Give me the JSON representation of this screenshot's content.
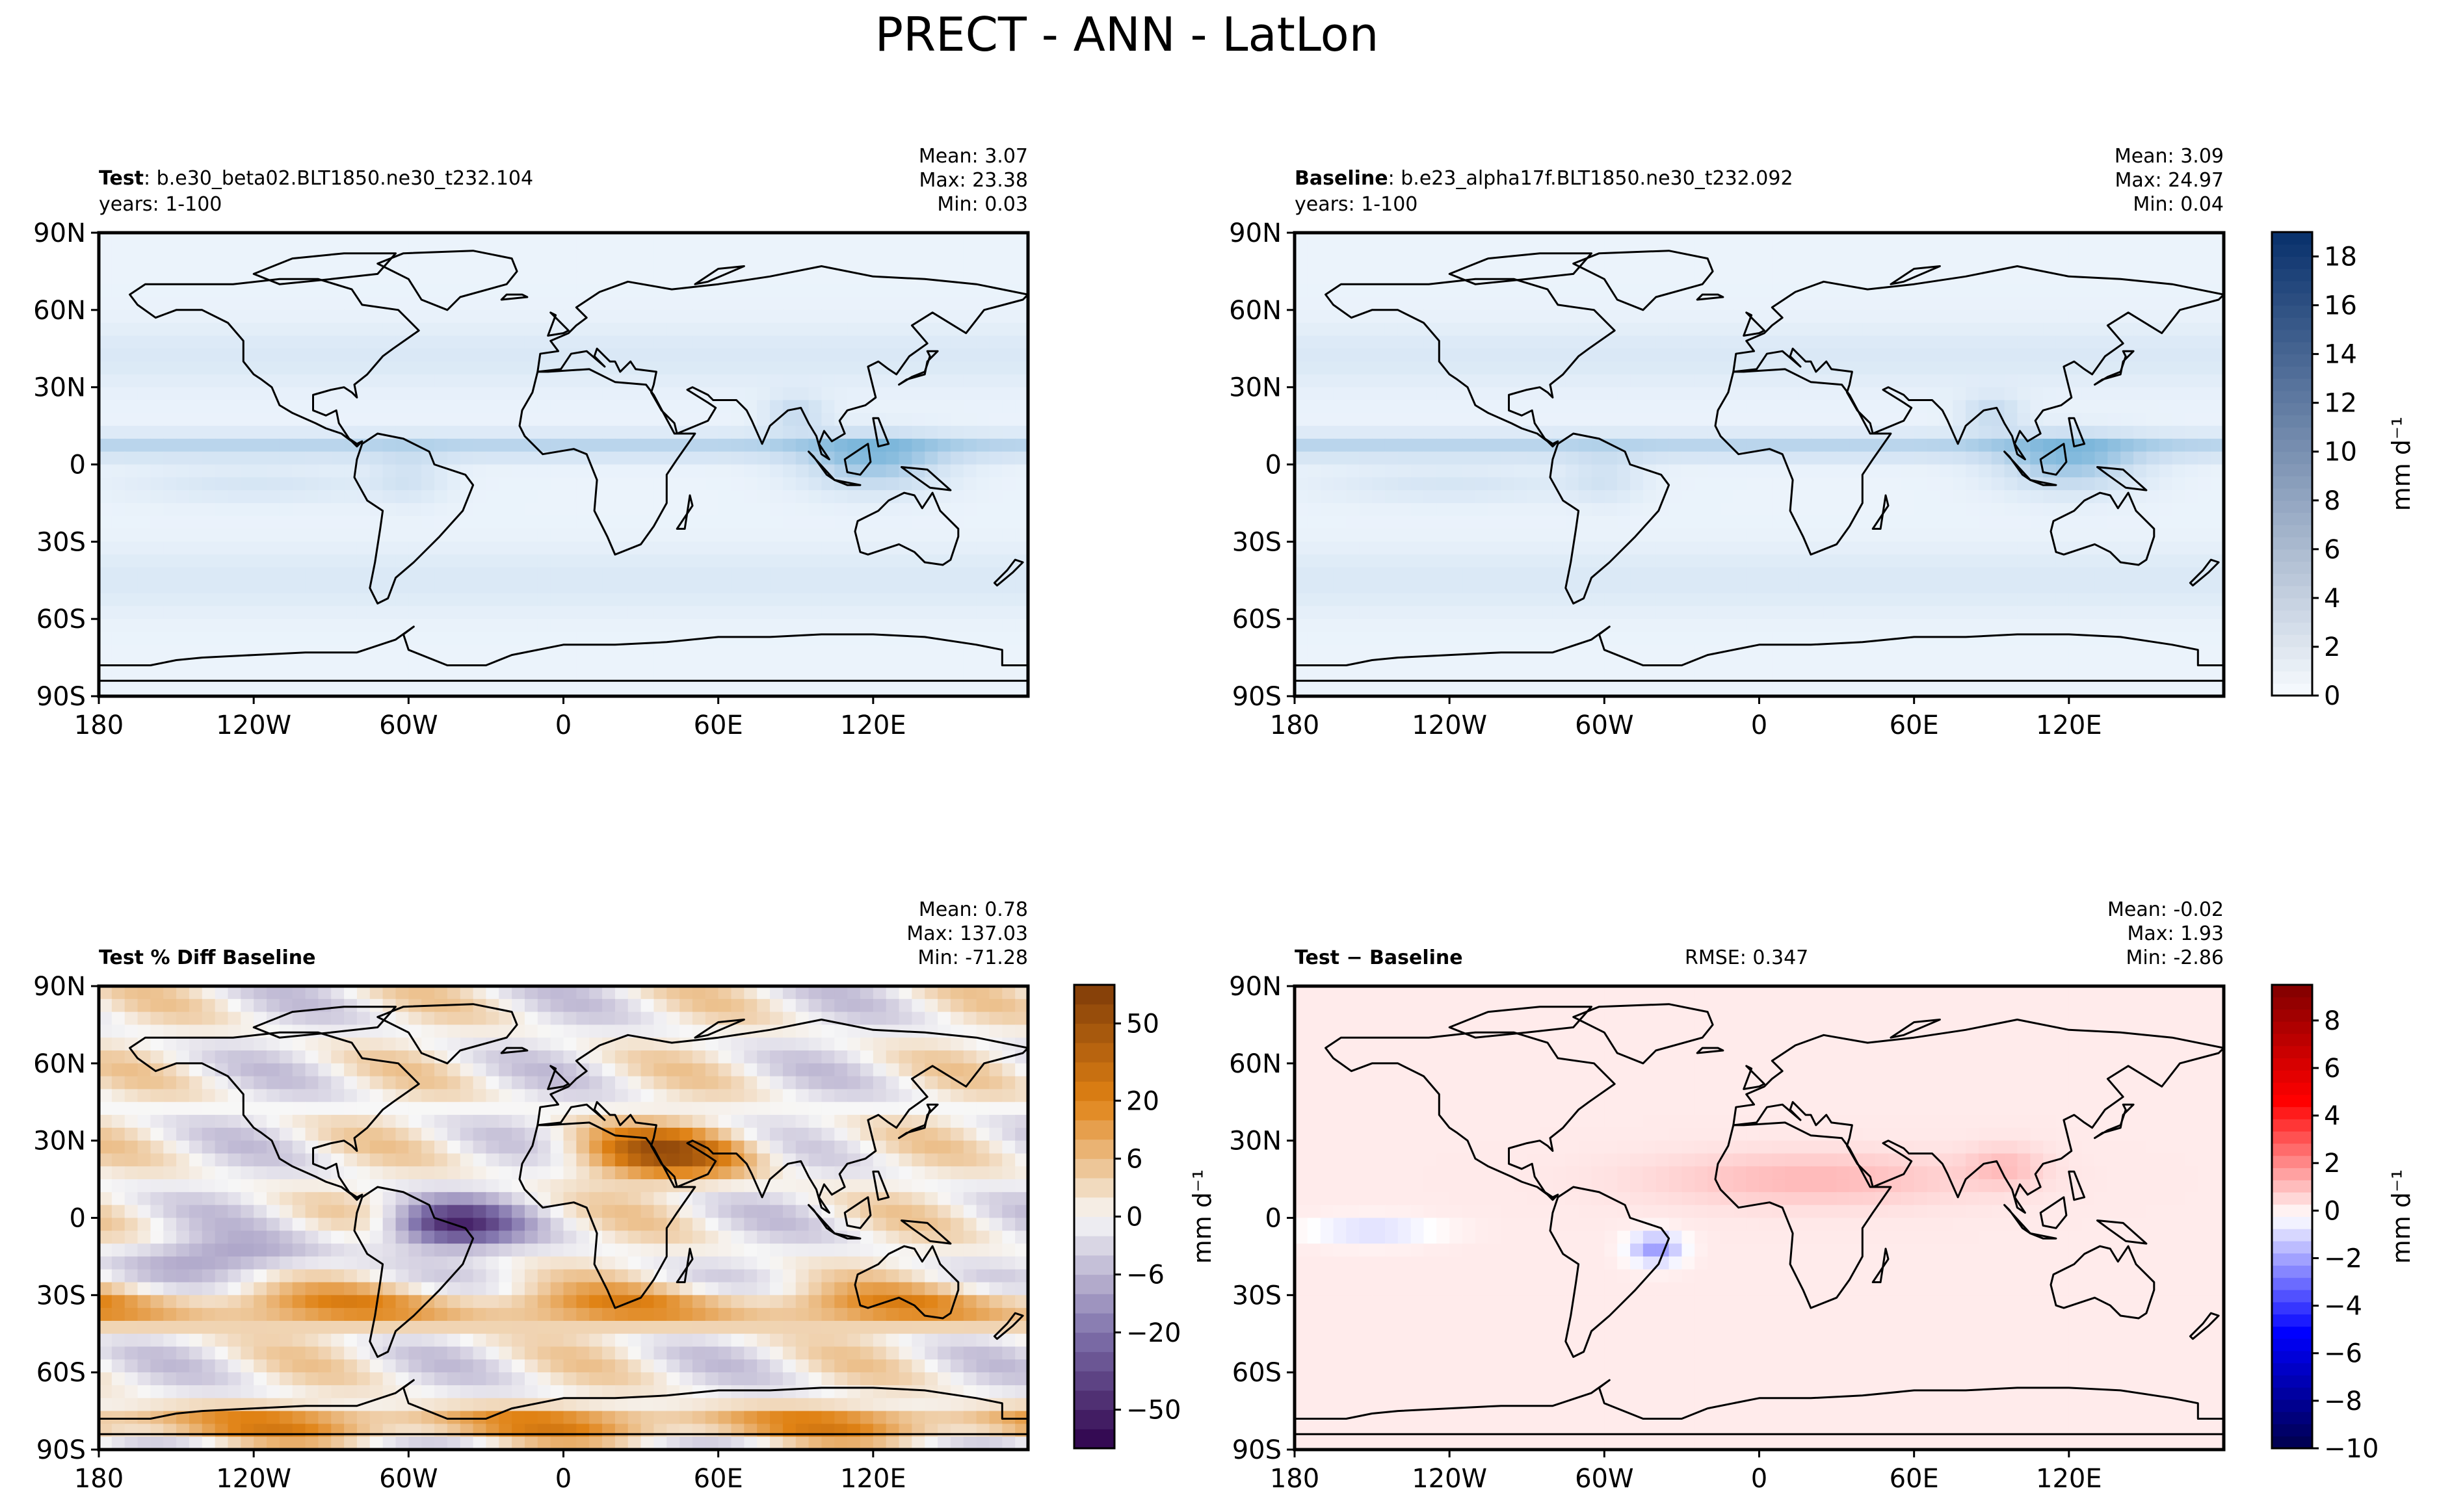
{
  "figure": {
    "title": "PRECT - ANN - LatLon"
  },
  "chart_data": [
    {
      "id": "test",
      "type": "heatmap",
      "title_bold": "Test",
      "title_rest": ": b.e30_beta02.BLT1850.ne30_t232.104",
      "subtitle": "years: 1-100",
      "rmse": "",
      "stats": [
        "Mean:  3.07",
        "Max: 23.38",
        "Min:  0.03"
      ],
      "xlim": [
        -180,
        180
      ],
      "ylim": [
        -90,
        90
      ],
      "xticks": [
        -180,
        -120,
        -60,
        0,
        60,
        120
      ],
      "xtick_labels": [
        "180",
        "120W",
        "60W",
        "0",
        "60E",
        "120E"
      ],
      "yticks": [
        90,
        60,
        30,
        0,
        -30,
        -60,
        -90
      ],
      "ytick_labels": [
        "90N",
        "60N",
        "30N",
        "0",
        "30S",
        "60S",
        "90S"
      ],
      "colormap": "Blues",
      "colorbar": null
    },
    {
      "id": "baseline",
      "type": "heatmap",
      "title_bold": "Baseline",
      "title_rest": ": b.e23_alpha17f.BLT1850.ne30_t232.092",
      "subtitle": "years: 1-100",
      "rmse": "",
      "stats": [
        "Mean:  3.09",
        "Max: 24.97",
        "Min:  0.04"
      ],
      "xlim": [
        -180,
        180
      ],
      "ylim": [
        -90,
        90
      ],
      "xticks": [
        -180,
        -120,
        -60,
        0,
        60,
        120
      ],
      "xtick_labels": [
        "180",
        "120W",
        "60W",
        "0",
        "60E",
        "120E"
      ],
      "yticks": [
        90,
        60,
        30,
        0,
        -30,
        -60,
        -90
      ],
      "ytick_labels": [
        "90N",
        "60N",
        "30N",
        "0",
        "30S",
        "60S",
        "90S"
      ],
      "colormap": "Blues",
      "colorbar": {
        "label": "mm d⁻¹",
        "ticks": [
          "0",
          "2",
          "4",
          "6",
          "8",
          "10",
          "12",
          "14",
          "16",
          "18"
        ],
        "range": [
          0,
          19
        ],
        "colors": [
          "#f7fbff",
          "#08306b"
        ]
      }
    },
    {
      "id": "pct-diff",
      "type": "heatmap",
      "title_bold": "Test % Diff Baseline",
      "title_rest": "",
      "subtitle": "",
      "rmse": "",
      "stats": [
        "Mean:  0.78",
        "Max: 137.03",
        "Min: -71.28"
      ],
      "xlim": [
        -180,
        180
      ],
      "ylim": [
        -90,
        90
      ],
      "xticks": [
        -180,
        -120,
        -60,
        0,
        60,
        120
      ],
      "xtick_labels": [
        "180",
        "120W",
        "60W",
        "0",
        "60E",
        "120E"
      ],
      "yticks": [
        90,
        60,
        30,
        0,
        -30,
        -60,
        -90
      ],
      "ytick_labels": [
        "90N",
        "60N",
        "30N",
        "0",
        "30S",
        "60S",
        "90S"
      ],
      "colormap": "PuOr",
      "colorbar": {
        "label": "mm d⁻¹",
        "ticks": [
          "−50",
          "−20",
          "−6",
          "0",
          "6",
          "20",
          "50"
        ],
        "levels": 24,
        "tick_levels": [
          2,
          6,
          9,
          12,
          15,
          18,
          22
        ],
        "colors": [
          "#2d004b",
          "#8073ac",
          "#f7f7f7",
          "#e08214",
          "#7f3b08"
        ]
      }
    },
    {
      "id": "test-minus-baseline",
      "type": "heatmap",
      "title_bold": "Test − Baseline",
      "title_rest": "",
      "subtitle": "",
      "rmse": "RMSE: 0.347",
      "stats": [
        "Mean: -0.02",
        "Max:  1.93",
        "Min: -2.86"
      ],
      "xlim": [
        -180,
        180
      ],
      "ylim": [
        -90,
        90
      ],
      "xticks": [
        -180,
        -120,
        -60,
        0,
        60,
        120
      ],
      "xtick_labels": [
        "180",
        "120W",
        "60W",
        "0",
        "60E",
        "120E"
      ],
      "yticks": [
        90,
        60,
        30,
        0,
        -30,
        -60,
        -90
      ],
      "ytick_labels": [
        "90N",
        "60N",
        "30N",
        "0",
        "30S",
        "60S",
        "90S"
      ],
      "colormap": "seismic",
      "colorbar": {
        "label": "mm d⁻¹",
        "ticks": [
          "−10",
          "−8",
          "−6",
          "−4",
          "−2",
          "0",
          "2",
          "4",
          "6",
          "8"
        ],
        "range": [
          -10,
          9.5
        ],
        "colors": [
          "#00004c",
          "#0000ff",
          "#ffffff",
          "#ff0000",
          "#800000"
        ]
      }
    }
  ]
}
